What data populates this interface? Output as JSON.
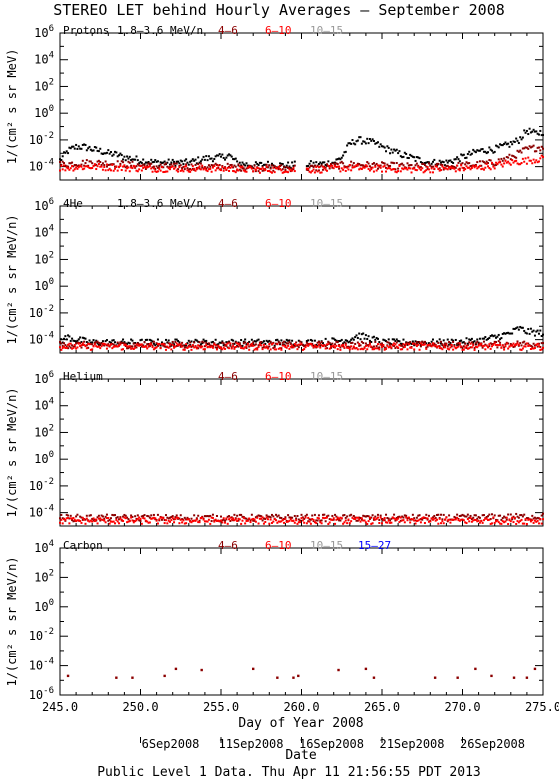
{
  "title": "STEREO LET behind Hourly Averages – September 2008",
  "footer": "Public Level 1 Data. Thu Apr 11 21:56:55 PDT 2013",
  "x_axis": {
    "label": "Day of Year 2008",
    "date_label": "Date",
    "range": [
      245.0,
      275.0
    ],
    "ticks": [
      "245.0",
      "250.0",
      "255.0",
      "260.0",
      "265.0",
      "270.0",
      "275.0"
    ],
    "tick_values": [
      245,
      250,
      255,
      260,
      265,
      270,
      275
    ],
    "date_ticks": [
      {
        "label": "6Sep2008",
        "doy": 250
      },
      {
        "label": "11Sep2008",
        "doy": 255
      },
      {
        "label": "16Sep2008",
        "doy": 260
      },
      {
        "label": "21Sep2008",
        "doy": 265
      },
      {
        "label": "26Sep2008",
        "doy": 270
      }
    ]
  },
  "colors": {
    "ch1": "#000000",
    "ch2": "#8b0000",
    "ch3": "#ff0000",
    "ch4": "#999999",
    "ch5": "#0000ff"
  },
  "chart_data": [
    {
      "type": "scatter",
      "panel_label": "Protons",
      "ylabel": "1/(cm² s sr MeV)",
      "log_y": true,
      "ylim_exp": [
        -5,
        6
      ],
      "y_tick_exps": [
        6,
        4,
        2,
        0,
        -2,
        -4
      ],
      "legend": [
        "1.8–3.6 MeV/n",
        "4–6",
        "6–10",
        "10–15"
      ],
      "series": [
        {
          "name": "1.8–3.6 MeV/n",
          "color": "#000000",
          "x": [
            245.0,
            245.5,
            246.0,
            246.5,
            247.0,
            247.5,
            248.0,
            248.5,
            249.0,
            249.5,
            250.0,
            251.0,
            252.0,
            253.0,
            254.0,
            255.0,
            255.5,
            256.0,
            256.5,
            257.0,
            258.0,
            259.0,
            260.0,
            261.0,
            262.0,
            262.5,
            263.0,
            263.5,
            264.0,
            264.5,
            265.0,
            266.0,
            267.0,
            268.0,
            268.5,
            269.0,
            270.0,
            271.0,
            272.0,
            273.0,
            273.5,
            274.0,
            274.5,
            275.0
          ],
          "y": [
            0.0003,
            0.0015,
            0.003,
            0.003,
            0.002,
            0.0015,
            0.001,
            0.0008,
            0.0005,
            0.0004,
            0.0003,
            0.0002,
            0.0002,
            0.0002,
            0.0004,
            0.0005,
            0.0007,
            0.0002,
            0.00015,
            0.00012,
            0.00015,
            0.00012,
            0.00015,
            0.00015,
            0.0002,
            0.0005,
            0.005,
            0.01,
            0.008,
            0.006,
            0.003,
            0.001,
            0.0004,
            0.0002,
            0.0002,
            0.0002,
            0.0005,
            0.0015,
            0.002,
            0.005,
            0.01,
            0.05,
            0.03,
            0.04
          ]
        },
        {
          "name": "4–6",
          "color": "#8b0000",
          "x": [
            245.0,
            247.0,
            249.0,
            251.0,
            253.0,
            255.0,
            257.0,
            259.0,
            261.0,
            263.0,
            265.0,
            267.0,
            269.0,
            271.0,
            272.0,
            273.0,
            274.0,
            275.0
          ],
          "y": [
            0.00015,
            0.0002,
            0.00015,
            0.0001,
            0.0001,
            0.0001,
            8e-05,
            8e-05,
            8e-05,
            0.00015,
            0.00012,
            0.0001,
            0.0001,
            0.00015,
            0.0002,
            0.0005,
            0.002,
            0.003
          ]
        },
        {
          "name": "6–10",
          "color": "#ff0000",
          "x": [
            245.0,
            247.0,
            249.0,
            251.0,
            253.0,
            255.0,
            257.0,
            259.0,
            261.0,
            263.0,
            265.0,
            267.0,
            269.0,
            271.0,
            273.0,
            275.0
          ],
          "y": [
            8e-05,
            0.0001,
            8e-05,
            7e-05,
            7e-05,
            7e-05,
            6e-05,
            6e-05,
            6e-05,
            8e-05,
            7e-05,
            6e-05,
            7e-05,
            8e-05,
            0.0002,
            0.0004
          ]
        }
      ]
    },
    {
      "type": "scatter",
      "panel_label": "4He",
      "ylabel": "1/(cm² s sr MeV/n)",
      "log_y": true,
      "ylim_exp": [
        -5,
        6
      ],
      "y_tick_exps": [
        6,
        4,
        2,
        0,
        -2,
        -4
      ],
      "legend": [
        "1.8–3.6 MeV/n",
        "4–6",
        "6–10",
        "10–15"
      ],
      "series": [
        {
          "name": "1.8–3.6 MeV/n",
          "color": "#000000",
          "x": [
            245.0,
            245.5,
            246.0,
            247.0,
            249.0,
            251.0,
            253.0,
            255.0,
            257.0,
            259.0,
            261.0,
            263.0,
            263.5,
            264.0,
            264.5,
            265.0,
            267.0,
            269.0,
            271.0,
            272.0,
            273.0,
            273.5,
            274.0,
            275.0
          ],
          "y": [
            8e-05,
            0.00015,
            0.0001,
            6e-05,
            6e-05,
            6e-05,
            6e-05,
            6e-05,
            6e-05,
            6e-05,
            6e-05,
            0.0001,
            0.0002,
            0.00015,
            0.0001,
            6e-05,
            6e-05,
            6e-05,
            8e-05,
            0.00015,
            0.0003,
            0.0007,
            0.0004,
            0.0003
          ]
        },
        {
          "name": "4–6",
          "color": "#8b0000",
          "x": [
            245.0,
            250.0,
            255.0,
            260.0,
            265.0,
            270.0,
            275.0
          ],
          "y": [
            4e-05,
            4e-05,
            4e-05,
            4e-05,
            4e-05,
            4e-05,
            5e-05
          ]
        },
        {
          "name": "6–10",
          "color": "#ff0000",
          "x": [
            245.0,
            250.0,
            255.0,
            260.0,
            265.0,
            270.0,
            275.0
          ],
          "y": [
            3e-05,
            3e-05,
            3e-05,
            3e-05,
            3e-05,
            3e-05,
            3e-05
          ]
        }
      ]
    },
    {
      "type": "scatter",
      "panel_label": "Helium",
      "ylabel": "1/(cm² s sr MeV/n)",
      "log_y": true,
      "ylim_exp": [
        -5,
        6
      ],
      "y_tick_exps": [
        6,
        4,
        2,
        0,
        -2,
        -4
      ],
      "legend": [
        "4–6",
        "6–10",
        "10–15"
      ],
      "series": [
        {
          "name": "4–6",
          "color": "#8b0000",
          "x": [
            245.0,
            250.0,
            255.0,
            260.0,
            265.0,
            270.0,
            275.0
          ],
          "y": [
            4e-05,
            4e-05,
            4e-05,
            4e-05,
            4e-05,
            4e-05,
            5e-05
          ]
        },
        {
          "name": "6–10",
          "color": "#ff0000",
          "x": [
            245.0,
            250.0,
            255.0,
            260.0,
            265.0,
            270.0,
            275.0
          ],
          "y": [
            2.5e-05,
            2.5e-05,
            2.5e-05,
            2.5e-05,
            2.5e-05,
            2.5e-05,
            2.5e-05
          ]
        }
      ]
    },
    {
      "type": "scatter",
      "panel_label": "Carbon",
      "ylabel": "1/(cm² s sr MeV/n)",
      "log_y": true,
      "ylim_exp": [
        -6,
        4
      ],
      "y_tick_exps": [
        4,
        2,
        0,
        -2,
        -4,
        -6
      ],
      "legend": [
        "4–6",
        "6–10",
        "10–15",
        "15–27"
      ],
      "series": [
        {
          "name": "4–6",
          "color": "#8b0000",
          "x": [
            245.5,
            248.5,
            249.5,
            251.5,
            252.2,
            253.8,
            257.0,
            258.5,
            259.5,
            259.8,
            262.3,
            264.0,
            264.5,
            268.3,
            269.7,
            270.8,
            271.8,
            273.2,
            274.0,
            274.5
          ],
          "y": [
            2e-05,
            1.5e-05,
            1.5e-05,
            2e-05,
            6e-05,
            5e-05,
            6e-05,
            1.5e-05,
            1.5e-05,
            2e-05,
            5e-05,
            6e-05,
            1.5e-05,
            1.5e-05,
            1.5e-05,
            6e-05,
            2e-05,
            1.5e-05,
            1.5e-05,
            6e-05
          ]
        }
      ]
    }
  ]
}
